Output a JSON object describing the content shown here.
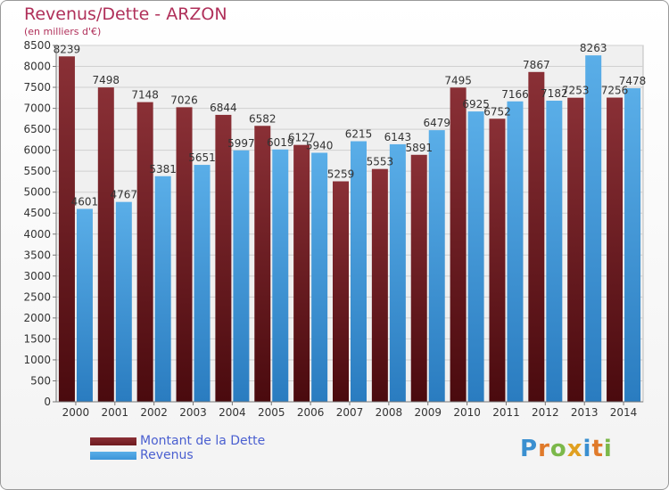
{
  "header": {
    "title": "Revenus/Dette - ARZON",
    "subtitle": "(en milliers d'€)"
  },
  "chart_data": {
    "type": "bar",
    "categories": [
      "2000",
      "2001",
      "2002",
      "2003",
      "2004",
      "2005",
      "2006",
      "2007",
      "2008",
      "2009",
      "2010",
      "2011",
      "2012",
      "2013",
      "2014"
    ],
    "series": [
      {
        "name": "Montant de la Dette",
        "color": "#6e1a1e",
        "values": [
          8239,
          7498,
          7148,
          7026,
          6844,
          6582,
          6127,
          5259,
          5553,
          5891,
          7495,
          6752,
          7867,
          7253,
          7256
        ]
      },
      {
        "name": "Revenus",
        "color": "#3c95d8",
        "values": [
          4601,
          4767,
          5381,
          5651,
          5997,
          6019,
          5940,
          6215,
          6143,
          6479,
          6925,
          7166,
          7182,
          8263,
          7478
        ]
      }
    ],
    "ylim": [
      0,
      8500
    ],
    "ytick_step": 500,
    "grid": true,
    "legend": "bottom-left"
  },
  "logo": {
    "letters": [
      "P",
      "r",
      "o",
      "x",
      "i",
      "t",
      "i"
    ],
    "colors": [
      "#3a8fd0",
      "#e07a2a",
      "#7bb84a",
      "#e0a020",
      "#3a8fd0",
      "#e07a2a",
      "#7bb84a"
    ]
  }
}
